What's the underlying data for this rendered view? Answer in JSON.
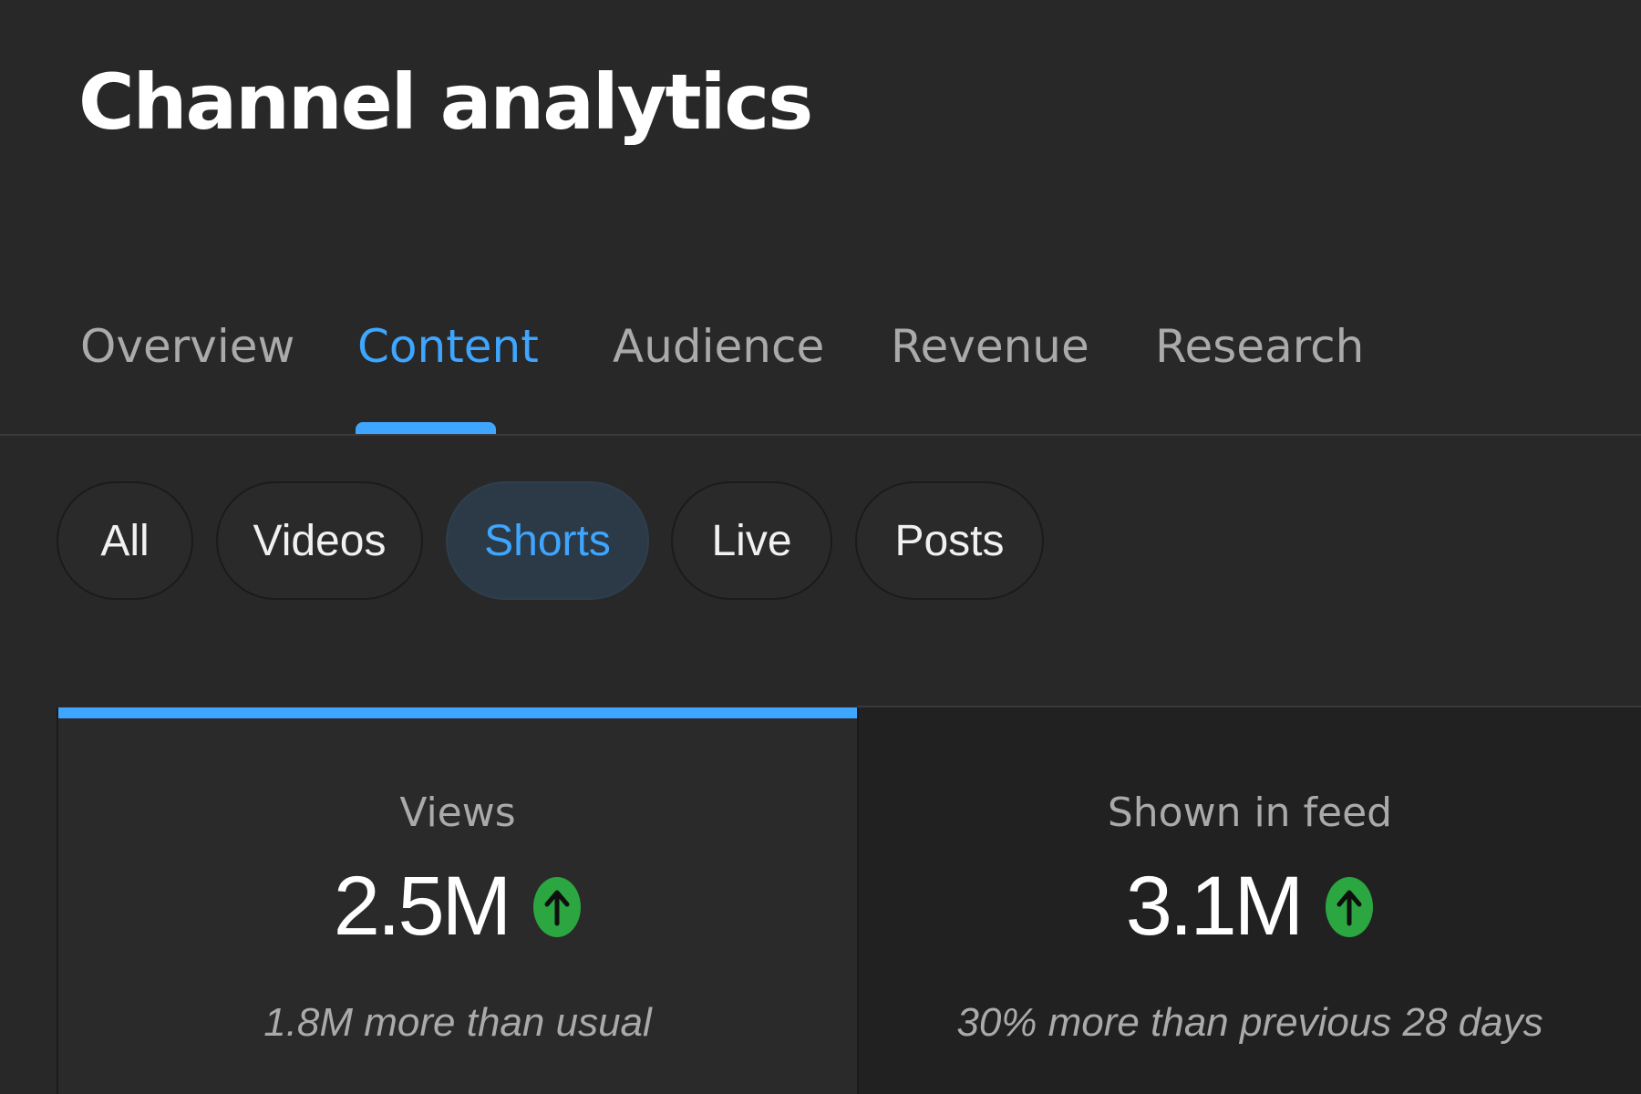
{
  "header": {
    "title": "Channel analytics"
  },
  "tabs": [
    {
      "label": "Overview",
      "active": false
    },
    {
      "label": "Content",
      "active": true
    },
    {
      "label": "Audience",
      "active": false
    },
    {
      "label": "Revenue",
      "active": false
    },
    {
      "label": "Research",
      "active": false
    }
  ],
  "filters": [
    {
      "label": "All",
      "selected": false
    },
    {
      "label": "Videos",
      "selected": false
    },
    {
      "label": "Shorts",
      "selected": true
    },
    {
      "label": "Live",
      "selected": false
    },
    {
      "label": "Posts",
      "selected": false
    }
  ],
  "metrics": [
    {
      "label": "Views",
      "value": "2.5M",
      "trend": "up",
      "trend_icon": "arrow-up-circle-icon",
      "note": "1.8M more than usual",
      "selected": true
    },
    {
      "label": "Shown in feed",
      "value": "3.1M",
      "trend": "up",
      "trend_icon": "arrow-up-circle-icon",
      "note": "30% more than previous 28 days",
      "selected": false
    }
  ],
  "colors": {
    "background": "#282828",
    "accent": "#3ea6ff",
    "trend_up": "#2ba640",
    "text_primary": "#ffffff",
    "text_secondary": "#aaaaaa"
  }
}
